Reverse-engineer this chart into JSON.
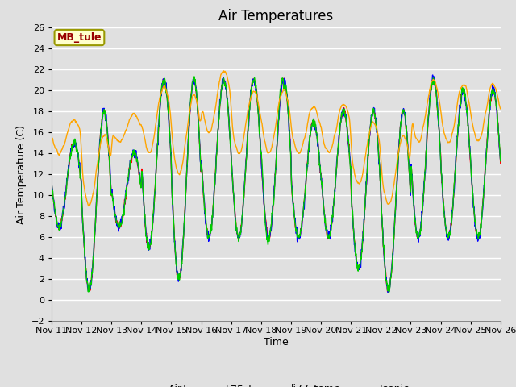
{
  "title": "Air Temperatures",
  "xlabel": "Time",
  "ylabel": "Air Temperature (C)",
  "annotation": "MB_tule",
  "ylim": [
    -2,
    26
  ],
  "yticks": [
    -2,
    0,
    2,
    4,
    6,
    8,
    10,
    12,
    14,
    16,
    18,
    20,
    22,
    24,
    26
  ],
  "n_days": 15,
  "xtick_labels": [
    "Nov 11",
    "Nov 12",
    "Nov 13",
    "Nov 14",
    "Nov 15",
    "Nov 16",
    "Nov 17",
    "Nov 18",
    "Nov 19",
    "Nov 20",
    "Nov 21",
    "Nov 22",
    "Nov 23",
    "Nov 24",
    "Nov 25",
    "Nov 26"
  ],
  "series_colors": {
    "AirT": "#ff0000",
    "li75_t": "#0000ff",
    "li77_temp": "#00cc00",
    "Tsonic": "#ffa500"
  },
  "background_color": "#e0e0e0",
  "plot_bg_color": "#e0e0e0",
  "grid_color": "#ffffff",
  "title_fontsize": 12,
  "axis_label_fontsize": 9,
  "tick_fontsize": 8,
  "legend_fontsize": 9,
  "annotation_box_color": "#ffffcc",
  "annotation_text_color": "#990000",
  "annotation_border_color": "#999900",
  "linewidth": 1.0
}
